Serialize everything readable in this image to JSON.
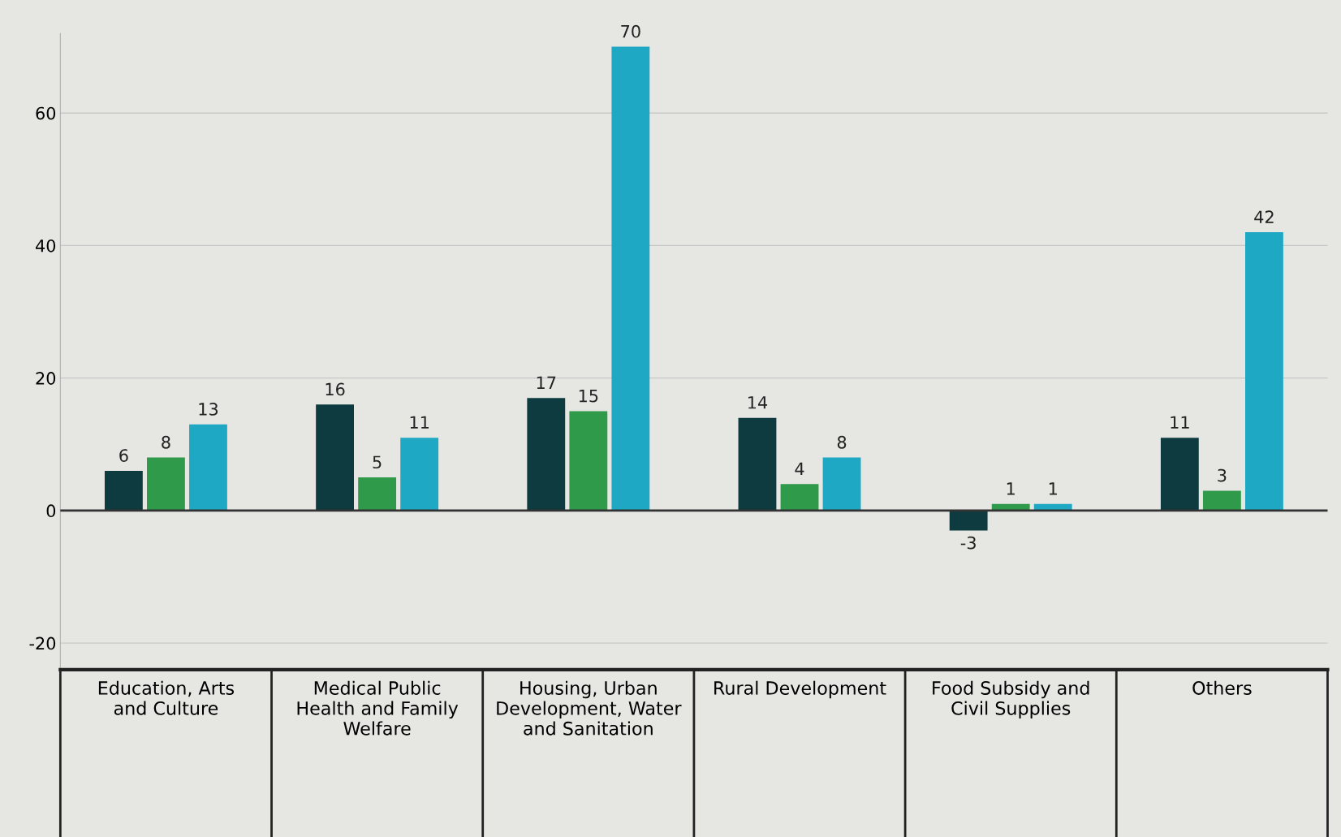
{
  "chart_data": {
    "type": "bar",
    "categories": [
      "Education, Arts and Culture",
      "Medical Public Health and Family Welfare",
      "Housing, Urban Development, Water and Sanitation",
      "Rural Development",
      "Food Subsidy and Civil Supplies",
      "Others"
    ],
    "series": [
      {
        "color": "#0d3b40",
        "values": [
          6,
          16,
          17,
          14,
          -3,
          11
        ]
      },
      {
        "color": "#2e9a4a",
        "values": [
          8,
          5,
          15,
          4,
          1,
          3
        ]
      },
      {
        "color": "#1fa8c4",
        "values": [
          13,
          11,
          70,
          8,
          1,
          42
        ]
      }
    ],
    "ylim": [
      -24,
      72
    ],
    "yticks": [
      -20,
      0,
      20,
      40,
      60
    ],
    "grid": "y",
    "data_labels": true,
    "ref_lines": [
      {
        "axis": "y",
        "value": 0,
        "color": "#333333"
      }
    ]
  }
}
